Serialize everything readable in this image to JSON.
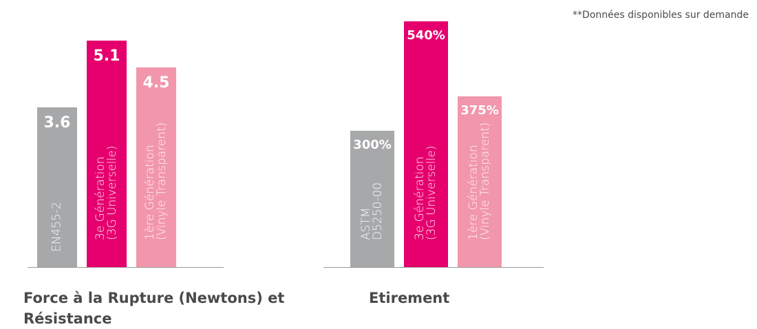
{
  "note": "**Données disponibles sur demande",
  "chart_data": [
    {
      "type": "bar",
      "title": "Force à la Rupture (Newtons) et Résistance",
      "categories": [
        "EN455-2",
        "3e Génération\n(3G Universelle)",
        "1ère Génération\n(Vinyle Transparent)"
      ],
      "values": [
        3.6,
        5.1,
        4.5
      ],
      "value_labels": [
        "3.6",
        "5.1",
        "4.5"
      ],
      "colors": [
        "#a7a8aa",
        "#e6006e",
        "#f296ac"
      ]
    },
    {
      "type": "bar",
      "title": "Etirement",
      "categories": [
        "ASTM\nD5250-00",
        "3e Génération\n(3G Universelle)",
        "1ère Génération\n(Vinyle Transparent)"
      ],
      "values": [
        300,
        540,
        375
      ],
      "value_labels": [
        "300%",
        "540%",
        "375%"
      ],
      "colors": [
        "#a7a8aa",
        "#e6006e",
        "#f296ac"
      ]
    }
  ]
}
